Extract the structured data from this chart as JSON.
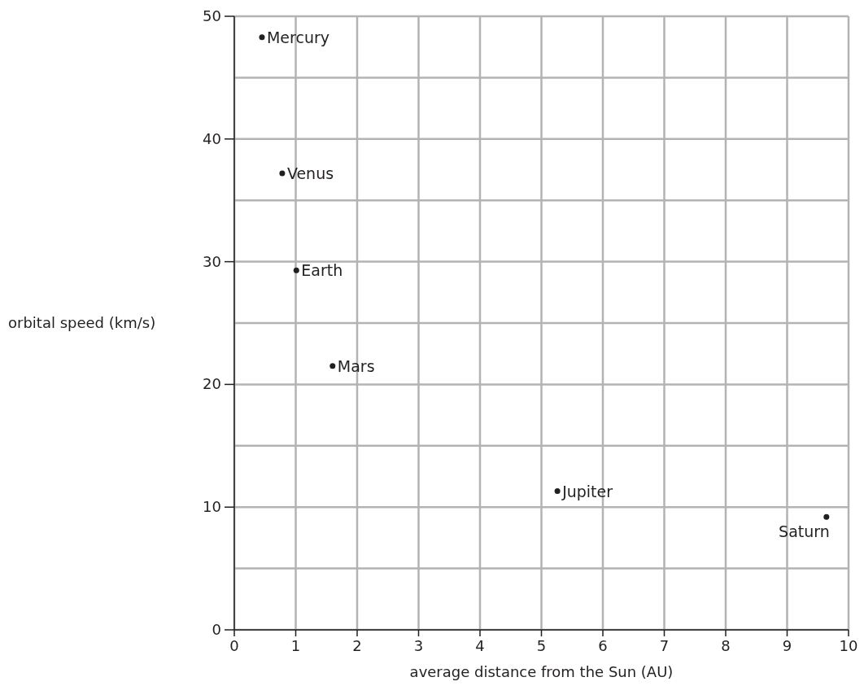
{
  "chart_data": {
    "type": "scatter",
    "xlabel": "average distance from the Sun (AU)",
    "ylabel": "orbital speed (km/s)",
    "x": [
      0.45,
      0.78,
      1.01,
      1.6,
      5.26,
      9.64
    ],
    "series": [
      {
        "color": "#231f20",
        "values": [
          48.3,
          37.2,
          29.3,
          21.5,
          11.3,
          9.2
        ]
      }
    ],
    "xlim": [
      0,
      10
    ],
    "ylim": [
      0,
      50
    ],
    "xticks": [
      0,
      1,
      2,
      3,
      4,
      5,
      6,
      7,
      8,
      9,
      10
    ],
    "yticks": [
      0,
      {
        "value": 5,
        "label": null
      },
      10,
      {
        "value": 15,
        "label": null
      },
      20,
      {
        "value": 25,
        "label": null
      },
      30,
      {
        "value": 35,
        "label": null
      },
      40,
      {
        "value": 45,
        "label": null
      },
      50
    ],
    "grid": true,
    "marker": "circle",
    "annotations": [
      {
        "text": "Mercury",
        "x": 0.45,
        "y": 48.3
      },
      {
        "text": "Venus",
        "x": 0.78,
        "y": 37.2
      },
      {
        "text": "Earth",
        "x": 1.01,
        "y": 29.3
      },
      {
        "text": "Mars",
        "x": 1.6,
        "y": 21.5
      },
      {
        "text": "Jupiter",
        "x": 5.26,
        "y": 11.3
      },
      {
        "text": "Saturn",
        "x": 9.64,
        "y": 9.2
      }
    ]
  }
}
